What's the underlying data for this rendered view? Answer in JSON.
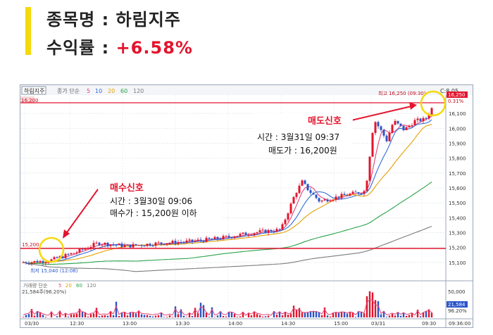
{
  "header": {
    "stock_label": "종목명 : 하림지주",
    "profit_label": "수익률 : ",
    "profit_value": "+6.58%"
  },
  "chart_toolbar": {
    "stock_tab": "하림지주",
    "series_label": "종가 단순",
    "ma_periods": [
      "5",
      "10",
      "20",
      "60",
      "120"
    ],
    "ma_colors": [
      "#e0457b",
      "#2f6fd6",
      "#e6a000",
      "#2aa34a",
      "#7c7c7c"
    ],
    "ref_price_left": "16,200",
    "corner_label": "C:8.05"
  },
  "chart_data": {
    "type": "candlestick",
    "x_ticks": [
      "03/30",
      "12:30",
      "13:00",
      "13:30",
      "14:00",
      "14:30",
      "15:00",
      "03/31",
      "09:30"
    ],
    "y_ticks": [
      "16,100",
      "16,000",
      "15,900",
      "15,800",
      "15,700",
      "15,600",
      "15,500",
      "15,400",
      "15,300",
      "15,200",
      "15,100"
    ],
    "ylim": [
      15050,
      16260
    ],
    "price_high_label": "최고 16,250 (09:30)",
    "price_low_label": "최저 15,040 (12:08)",
    "current_price_box": "16,250",
    "current_pct_box": "0.31%",
    "buy_line_label": "15,200",
    "volume_label": "거래량 단순",
    "volume_periods": [
      "5",
      "20",
      "60",
      "120"
    ],
    "volume_value_label": "21,584주(96.20%)",
    "volume_y_ticks": [
      "50,000",
      "25,000"
    ],
    "volume_box": "21,584",
    "volume_pct_box": "96.20%",
    "time_label_right": "09:36:00"
  },
  "annotations": {
    "buy": {
      "title": "매수신호",
      "time": "시간 : 3월30일 09:06",
      "price": "매수가 : 15,200원 이하"
    },
    "sell": {
      "title": "매도신호",
      "time": "시간 : 3월31일 09:37",
      "price": "매도가 : 16,200원"
    }
  },
  "colors": {
    "signal_red": "#e3142d",
    "highlight_yellow": "#f5d90a",
    "up_candle": "#e3142d",
    "down_candle": "#2a55c8"
  }
}
